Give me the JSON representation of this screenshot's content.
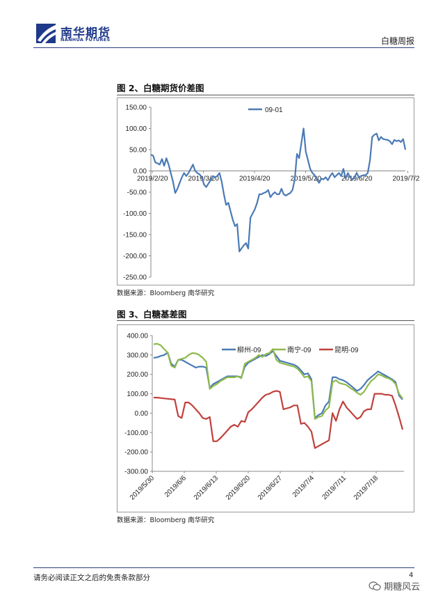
{
  "header": {
    "logo_cn": "南华期货",
    "logo_en": "NANHUA FUTURES",
    "report_title": "白糖周报"
  },
  "figure2": {
    "title": "图 2、白糖期货价差图",
    "source": "数据来源：Bloomberg 南华研究"
  },
  "figure3": {
    "title": "图 3、白糖基差图",
    "source": "数据来源：Bloomberg 南华研究"
  },
  "footer": {
    "disclaimer": "请务必阅读正文之后的免责条款部分",
    "page_number": "4",
    "watermark": "期糖风云"
  },
  "chart_data": [
    {
      "type": "line",
      "title": "",
      "xlabel": "",
      "ylabel": "",
      "ylim": [
        -250,
        150
      ],
      "yticks": [
        "150.00",
        "100.00",
        "50.00",
        "0.00",
        "-50.00",
        "-100.00",
        "-150.00",
        "-200.00",
        "-250.00"
      ],
      "xticks": [
        "2019/2/20",
        "2019/3/20",
        "2019/4/20",
        "2019/5/20",
        "2019/6/20",
        "2019/7/2"
      ],
      "legend_position": "top-center",
      "color": "#4a7ab5",
      "series": [
        {
          "name": "09-01",
          "values": [
            38,
            36,
            20,
            18,
            15,
            28,
            12,
            30,
            15,
            -5,
            -25,
            -52,
            -42,
            -28,
            -15,
            -5,
            -12,
            -5,
            5,
            15,
            0,
            -5,
            -8,
            -15,
            -32,
            -38,
            -30,
            -22,
            -12,
            -15,
            -12,
            -5,
            -25,
            -55,
            -80,
            -75,
            -95,
            -115,
            -130,
            -125,
            -190,
            -182,
            -175,
            -170,
            -183,
            -110,
            -100,
            -90,
            -75,
            -55,
            -55,
            -52,
            -50,
            -45,
            -62,
            -55,
            -50,
            -55,
            -55,
            -42,
            -55,
            -58,
            -55,
            -52,
            -45,
            -20,
            40,
            30,
            65,
            100,
            45,
            25,
            5,
            -5,
            -10,
            -20,
            -28,
            -18,
            -20,
            -15,
            -22,
            -12,
            -5,
            -15,
            -10,
            -5,
            -12,
            5,
            -18,
            -5,
            -15,
            -20,
            -15,
            -5,
            -15,
            -12,
            -10,
            -10,
            -5,
            25,
            80,
            85,
            88,
            72,
            80,
            75,
            74,
            73,
            70,
            63,
            73,
            70,
            72,
            68,
            75,
            50
          ]
        }
      ]
    },
    {
      "type": "line",
      "title": "",
      "xlabel": "",
      "ylabel": "",
      "ylim": [
        -300,
        400
      ],
      "yticks": [
        "400.00",
        "300.00",
        "200.00",
        "100.00",
        "0.00",
        "-100.00",
        "-200.00",
        "-300.00"
      ],
      "xticks": [
        "2019/5/30",
        "2019/6/6",
        "2019/6/13",
        "2019/6/20",
        "2019/6/27",
        "2019/7/4",
        "2019/7/11",
        "2019/7/18"
      ],
      "legend_position": "top",
      "series": [
        {
          "name": "柳州-09",
          "color": "#4a7ab5",
          "values": [
            285,
            288,
            295,
            300,
            312,
            255,
            240,
            275,
            275,
            265,
            255,
            245,
            235,
            240,
            240,
            235,
            130,
            150,
            160,
            170,
            180,
            190,
            190,
            190,
            190,
            185,
            240,
            260,
            270,
            280,
            290,
            300,
            295,
            305,
            320,
            295,
            270,
            265,
            260,
            255,
            250,
            240,
            220,
            200,
            205,
            175,
            -25,
            -10,
            0,
            40,
            60,
            185,
            185,
            175,
            170,
            160,
            145,
            130,
            115,
            125,
            145,
            170,
            185,
            200,
            215,
            205,
            195,
            185,
            175,
            160,
            90,
            70
          ]
        },
        {
          "name": "南宁-09",
          "color": "#8fb94b",
          "values": [
            355,
            358,
            350,
            330,
            312,
            245,
            235,
            275,
            280,
            285,
            300,
            310,
            308,
            300,
            285,
            265,
            125,
            140,
            150,
            165,
            175,
            185,
            185,
            185,
            190,
            180,
            255,
            265,
            275,
            285,
            300,
            290,
            305,
            310,
            330,
            275,
            260,
            255,
            250,
            245,
            240,
            230,
            210,
            185,
            190,
            165,
            -30,
            -20,
            -15,
            15,
            30,
            160,
            170,
            155,
            150,
            145,
            130,
            120,
            105,
            95,
            110,
            140,
            165,
            180,
            200,
            195,
            185,
            180,
            170,
            150,
            100,
            75
          ]
        },
        {
          "name": "昆明-09",
          "color": "#c0403c",
          "values": [
            80,
            80,
            78,
            76,
            74,
            72,
            70,
            -15,
            -25,
            55,
            55,
            40,
            20,
            0,
            -25,
            -30,
            -20,
            -145,
            -145,
            -130,
            -110,
            -90,
            -70,
            -60,
            -70,
            -40,
            -45,
            5,
            20,
            40,
            60,
            80,
            95,
            100,
            110,
            115,
            110,
            20,
            25,
            30,
            40,
            40,
            -55,
            -50,
            -70,
            -95,
            -180,
            -170,
            -160,
            -150,
            -140,
            0,
            -40,
            20,
            60,
            30,
            10,
            -10,
            -30,
            -20,
            10,
            20,
            20,
            100,
            100,
            100,
            95,
            95,
            90,
            40,
            -20,
            -85
          ]
        }
      ]
    }
  ]
}
